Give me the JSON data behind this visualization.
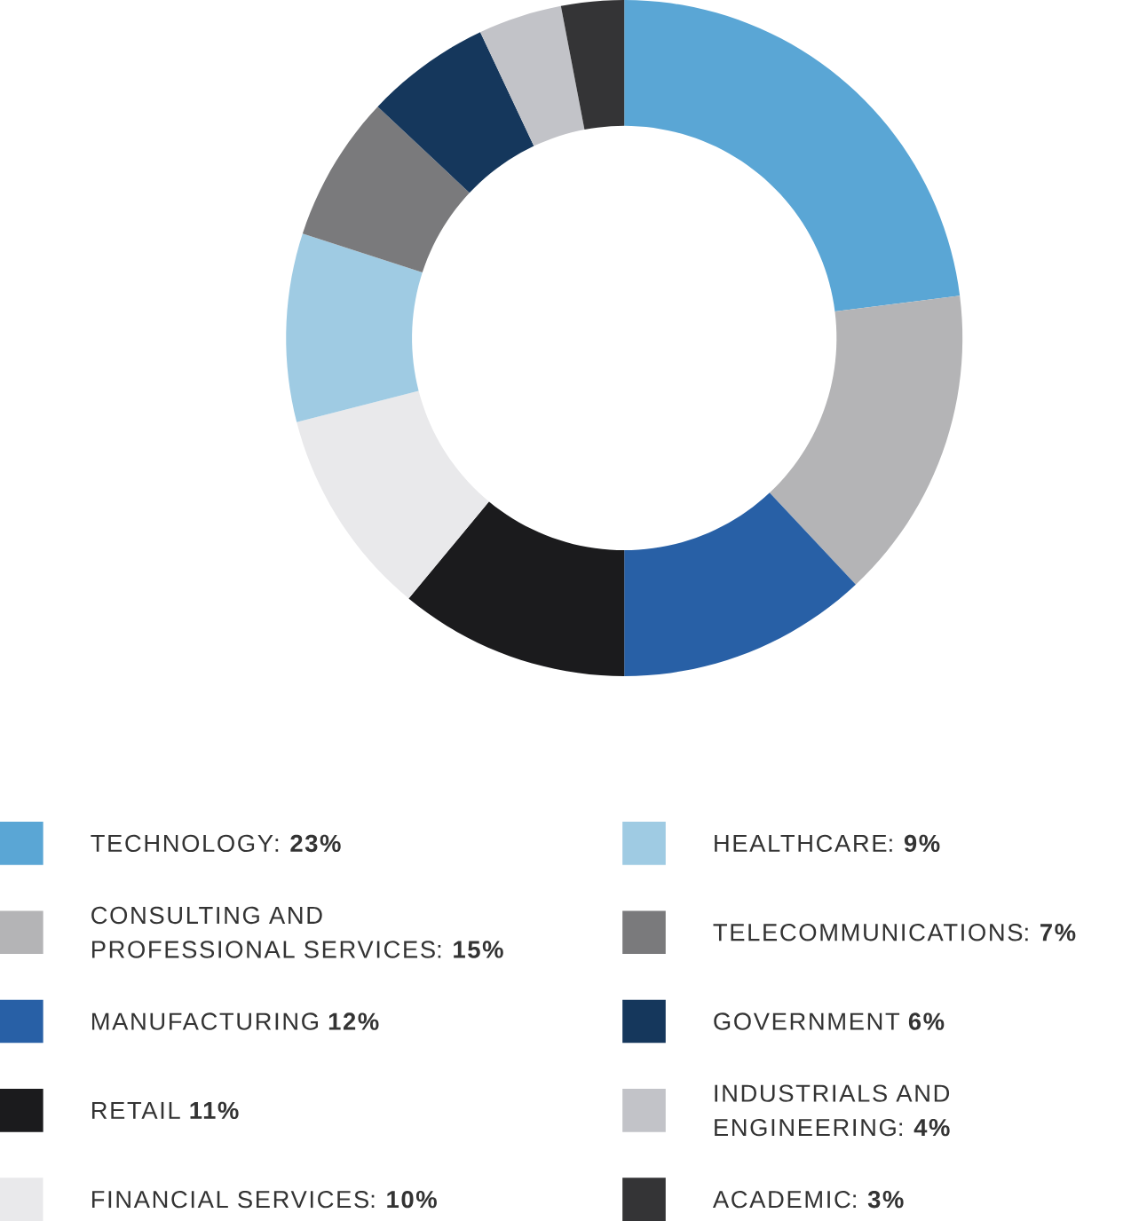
{
  "chart_data": {
    "type": "donut",
    "categories": [
      "TECHNOLOGY",
      "CONSULTING AND PROFESSIONAL SERVICES",
      "MANUFACTURING",
      "RETAIL",
      "FINANCIAL SERVICES",
      "HEALTHCARE",
      "TELECOMMUNICATIONS",
      "GOVERNMENT",
      "INDUSTRIALS AND ENGINEERING",
      "ACADEMIC"
    ],
    "values": [
      23,
      15,
      12,
      11,
      10,
      9,
      7,
      6,
      4,
      3
    ],
    "value_labels": [
      ": **23%**",
      ": **15%**",
      " **12%**",
      " **11%**",
      ": **10%**",
      ": **9%**",
      ": **7%**",
      " **6%**",
      ": **4%**",
      ": **3%**"
    ],
    "colors": [
      "#5aa6d5",
      "#b4b4b6",
      "#2860a6",
      "#1b1b1d",
      "#e9e9eb",
      "#9fcbe3",
      "#7a7a7c",
      "#15375c",
      "#c2c3c8",
      "#343436"
    ],
    "legend": "bottom"
  }
}
